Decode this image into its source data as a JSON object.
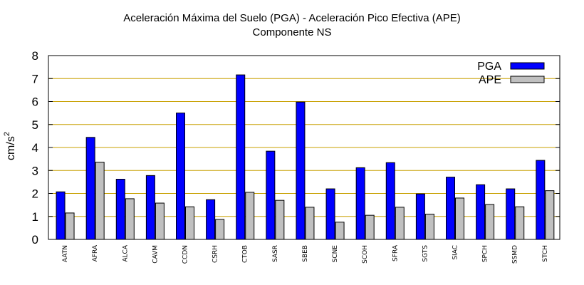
{
  "chart_data": {
    "type": "bar",
    "title": "Aceleración Máxima del Suelo (PGA) -  Aceleración Pico Efectiva (APE)",
    "subtitle": "Componente NS",
    "ylabel": "cm/s²",
    "xlabel": "",
    "ylim": [
      0,
      8
    ],
    "yticks": [
      0,
      1,
      2,
      3,
      4,
      5,
      6,
      7,
      8
    ],
    "grid": "horizontal",
    "legend_position": "top-right",
    "categories": [
      "AATN",
      "AFRA",
      "ALCA",
      "CAVM",
      "CCDN",
      "CSRH",
      "CTOB",
      "SASR",
      "SBEB",
      "SCNE",
      "SCOH",
      "SFRA",
      "SGTS",
      "SIAC",
      "SPCH",
      "SSMD",
      "STCH"
    ],
    "series": [
      {
        "name": "PGA",
        "color": "#0000ff",
        "values": [
          2.07,
          4.44,
          2.62,
          2.78,
          5.5,
          1.73,
          7.16,
          3.84,
          5.98,
          2.2,
          3.12,
          3.34,
          1.98,
          2.71,
          2.38,
          2.2,
          3.44
        ]
      },
      {
        "name": "APE",
        "color": "#c0c0c0",
        "values": [
          1.15,
          3.36,
          1.77,
          1.58,
          1.42,
          0.87,
          2.05,
          1.7,
          1.4,
          0.75,
          1.05,
          1.4,
          1.1,
          1.8,
          1.52,
          1.42,
          2.12
        ]
      }
    ]
  }
}
